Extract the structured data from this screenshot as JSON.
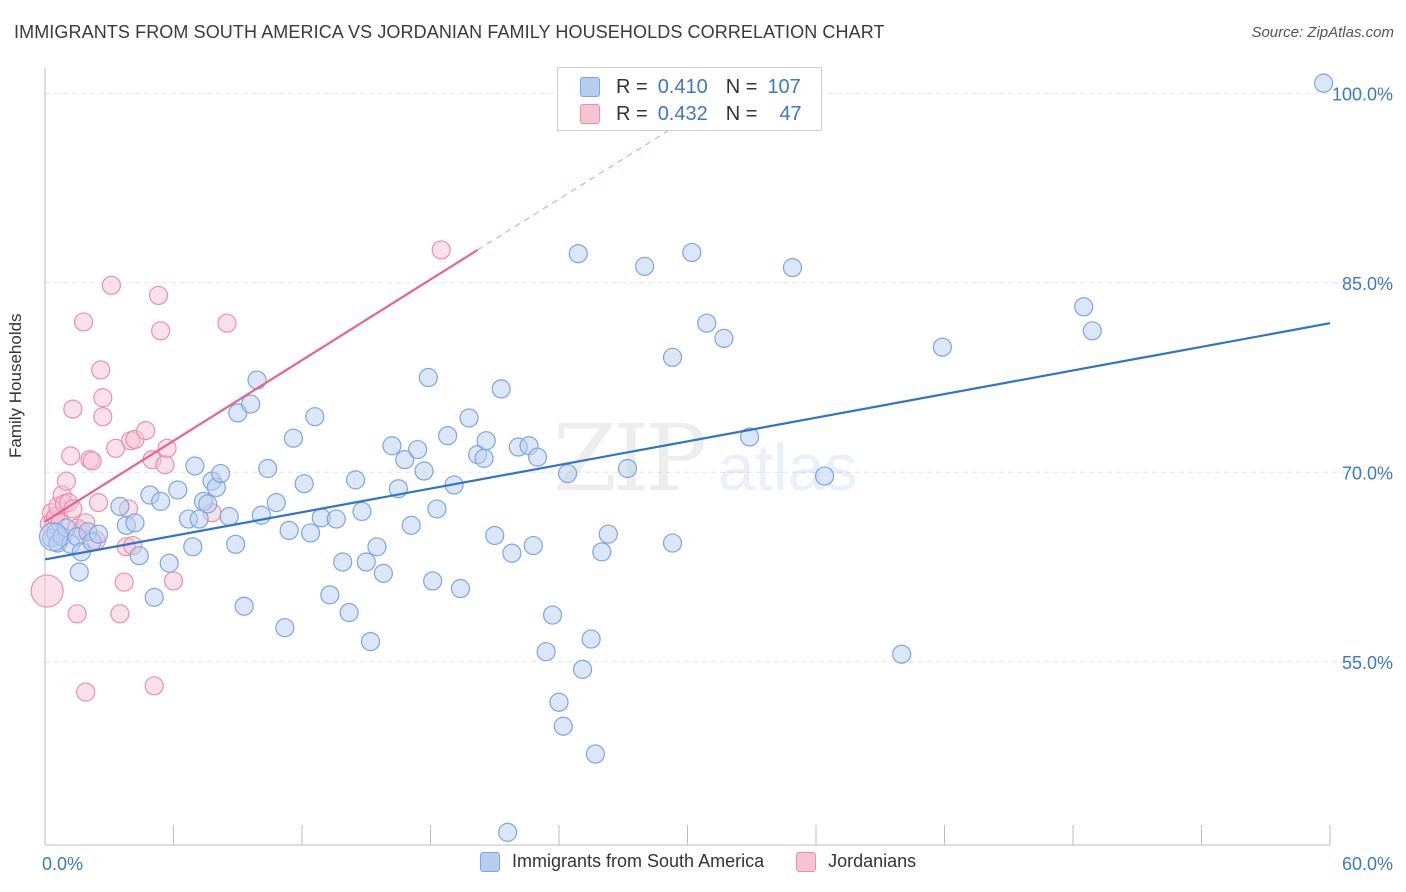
{
  "title": "IMMIGRANTS FROM SOUTH AMERICA VS JORDANIAN FAMILY HOUSEHOLDS CORRELATION CHART",
  "source": "Source: ZipAtlas.com",
  "watermark": {
    "zip": "ZIP",
    "atlas": "atlas"
  },
  "colors": {
    "blue_fill": "#b7cdf0",
    "blue_stroke": "#7ea6e0",
    "blue_line": "#2f73cc",
    "pink_fill": "#f6c3d3",
    "pink_stroke": "#eb8fae",
    "pink_line": "#e8648f",
    "tick_label": "#3a78c8",
    "grid": "#e3e3e3"
  },
  "legend": {
    "r_label": "R =",
    "n_label": "N =",
    "series": [
      {
        "name": "Immigrants from South America",
        "r": "0.410",
        "n": "107"
      },
      {
        "name": "Jordanians",
        "r": "0.432",
        "n": "47"
      }
    ]
  },
  "chart_data": {
    "type": "scatter",
    "title": "IMMIGRANTS FROM SOUTH AMERICA VS JORDANIAN FAMILY HOUSEHOLDS CORRELATION CHART",
    "xlabel": "",
    "ylabel": "Family Households",
    "xlim": [
      0,
      60
    ],
    "ylim": [
      40.5,
      102
    ],
    "x_tick_labels": [
      "0.0%",
      "60.0%"
    ],
    "y_ticks": [
      55,
      70,
      85,
      100
    ],
    "y_tick_labels": [
      "55.0%",
      "70.0%",
      "85.0%",
      "100.0%"
    ],
    "series": [
      {
        "name": "Immigrants from South America",
        "color": "#7ea6e0",
        "trend": {
          "x": [
            0,
            60
          ],
          "y": [
            63.1,
            81.8
          ]
        },
        "points": [
          [
            0.3,
            64.8
          ],
          [
            0.5,
            65.2
          ],
          [
            0.6,
            64.4
          ],
          [
            0.8,
            64.9
          ],
          [
            1.0,
            65.6
          ],
          [
            1.2,
            64.3
          ],
          [
            1.5,
            64.9
          ],
          [
            1.7,
            63.7
          ],
          [
            1.6,
            62.1
          ],
          [
            2.0,
            65.3
          ],
          [
            2.2,
            64.5
          ],
          [
            2.5,
            65.1
          ],
          [
            3.5,
            67.3
          ],
          [
            3.8,
            65.8
          ],
          [
            4.2,
            66.0
          ],
          [
            4.4,
            63.4
          ],
          [
            4.9,
            68.2
          ],
          [
            5.1,
            60.1
          ],
          [
            5.4,
            67.7
          ],
          [
            5.8,
            62.8
          ],
          [
            6.2,
            68.6
          ],
          [
            6.7,
            66.3
          ],
          [
            6.9,
            64.1
          ],
          [
            7.0,
            70.5
          ],
          [
            7.2,
            66.3
          ],
          [
            7.4,
            67.7
          ],
          [
            7.6,
            67.5
          ],
          [
            7.8,
            69.3
          ],
          [
            8.0,
            68.8
          ],
          [
            8.2,
            69.9
          ],
          [
            8.6,
            66.5
          ],
          [
            8.9,
            64.3
          ],
          [
            9.0,
            74.7
          ],
          [
            9.3,
            59.4
          ],
          [
            9.6,
            75.4
          ],
          [
            9.9,
            77.3
          ],
          [
            10.1,
            66.6
          ],
          [
            10.4,
            70.3
          ],
          [
            10.8,
            67.6
          ],
          [
            11.2,
            57.7
          ],
          [
            11.4,
            65.4
          ],
          [
            11.6,
            72.7
          ],
          [
            12.1,
            69.1
          ],
          [
            12.4,
            65.2
          ],
          [
            12.6,
            74.4
          ],
          [
            12.9,
            66.4
          ],
          [
            13.3,
            60.3
          ],
          [
            13.6,
            66.3
          ],
          [
            13.9,
            62.9
          ],
          [
            14.2,
            58.9
          ],
          [
            14.5,
            69.4
          ],
          [
            14.8,
            66.9
          ],
          [
            15.0,
            62.9
          ],
          [
            15.2,
            56.6
          ],
          [
            15.5,
            64.1
          ],
          [
            15.8,
            62.0
          ],
          [
            16.2,
            72.1
          ],
          [
            16.5,
            68.7
          ],
          [
            16.8,
            71.0
          ],
          [
            17.1,
            65.8
          ],
          [
            17.4,
            71.8
          ],
          [
            17.7,
            70.1
          ],
          [
            17.9,
            77.5
          ],
          [
            18.1,
            61.4
          ],
          [
            18.3,
            67.1
          ],
          [
            18.8,
            72.9
          ],
          [
            19.1,
            69.0
          ],
          [
            19.4,
            60.8
          ],
          [
            19.8,
            74.3
          ],
          [
            20.2,
            71.4
          ],
          [
            20.5,
            71.1
          ],
          [
            20.6,
            72.5
          ],
          [
            21.0,
            65.0
          ],
          [
            21.3,
            76.6
          ],
          [
            21.6,
            41.5
          ],
          [
            21.8,
            63.6
          ],
          [
            22.1,
            72.0
          ],
          [
            22.6,
            72.1
          ],
          [
            22.8,
            64.2
          ],
          [
            23.0,
            71.2
          ],
          [
            23.7,
            58.7
          ],
          [
            23.4,
            55.8
          ],
          [
            24.0,
            51.8
          ],
          [
            24.2,
            49.9
          ],
          [
            24.4,
            69.9
          ],
          [
            24.9,
            87.3
          ],
          [
            25.1,
            54.4
          ],
          [
            25.5,
            56.8
          ],
          [
            25.7,
            47.7
          ],
          [
            26.0,
            63.7
          ],
          [
            26.3,
            65.1
          ],
          [
            27.2,
            70.3
          ],
          [
            28.0,
            86.3
          ],
          [
            29.3,
            64.4
          ],
          [
            29.3,
            79.1
          ],
          [
            30.2,
            87.4
          ],
          [
            30.9,
            81.8
          ],
          [
            31.7,
            80.6
          ],
          [
            32.9,
            72.8
          ],
          [
            34.9,
            86.2
          ],
          [
            36.4,
            69.7
          ],
          [
            40.0,
            55.6
          ],
          [
            41.9,
            79.9
          ],
          [
            48.5,
            83.1
          ],
          [
            48.9,
            81.2
          ],
          [
            59.7,
            100.8
          ]
        ]
      },
      {
        "name": "Jordanians",
        "color": "#eb8fae",
        "trend": {
          "x": [
            0,
            20.2
          ],
          "y": [
            66.1,
            87.6
          ]
        },
        "trend_extended": {
          "x": [
            20.2,
            30.2
          ],
          "y": [
            87.6,
            98.2
          ]
        },
        "points": [
          [
            0.1,
            60.6
          ],
          [
            0.2,
            65.9
          ],
          [
            0.3,
            66.8
          ],
          [
            0.4,
            66.2
          ],
          [
            0.5,
            66.5
          ],
          [
            0.6,
            67.3
          ],
          [
            0.7,
            66.0
          ],
          [
            0.8,
            68.2
          ],
          [
            0.9,
            67.5
          ],
          [
            1.0,
            69.3
          ],
          [
            1.1,
            67.6
          ],
          [
            1.2,
            71.3
          ],
          [
            1.3,
            75.0
          ],
          [
            1.3,
            67.1
          ],
          [
            1.5,
            65.6
          ],
          [
            1.7,
            65.4
          ],
          [
            1.9,
            66.0
          ],
          [
            1.8,
            81.9
          ],
          [
            1.9,
            52.6
          ],
          [
            2.1,
            71.0
          ],
          [
            2.2,
            70.9
          ],
          [
            2.4,
            64.6
          ],
          [
            2.5,
            67.6
          ],
          [
            2.6,
            78.1
          ],
          [
            2.7,
            74.4
          ],
          [
            2.7,
            75.9
          ],
          [
            3.1,
            84.8
          ],
          [
            3.3,
            71.9
          ],
          [
            3.5,
            58.8
          ],
          [
            3.7,
            61.3
          ],
          [
            3.9,
            67.1
          ],
          [
            3.8,
            64.1
          ],
          [
            4.0,
            72.5
          ],
          [
            4.2,
            72.6
          ],
          [
            1.5,
            58.8
          ],
          [
            4.1,
            64.2
          ],
          [
            4.7,
            73.3
          ],
          [
            5.0,
            71.0
          ],
          [
            5.1,
            53.1
          ],
          [
            5.3,
            84.0
          ],
          [
            5.4,
            81.2
          ],
          [
            5.6,
            70.6
          ],
          [
            5.7,
            71.9
          ],
          [
            6.0,
            61.4
          ],
          [
            7.8,
            66.8
          ],
          [
            8.5,
            81.8
          ],
          [
            18.5,
            87.6
          ]
        ]
      }
    ]
  }
}
